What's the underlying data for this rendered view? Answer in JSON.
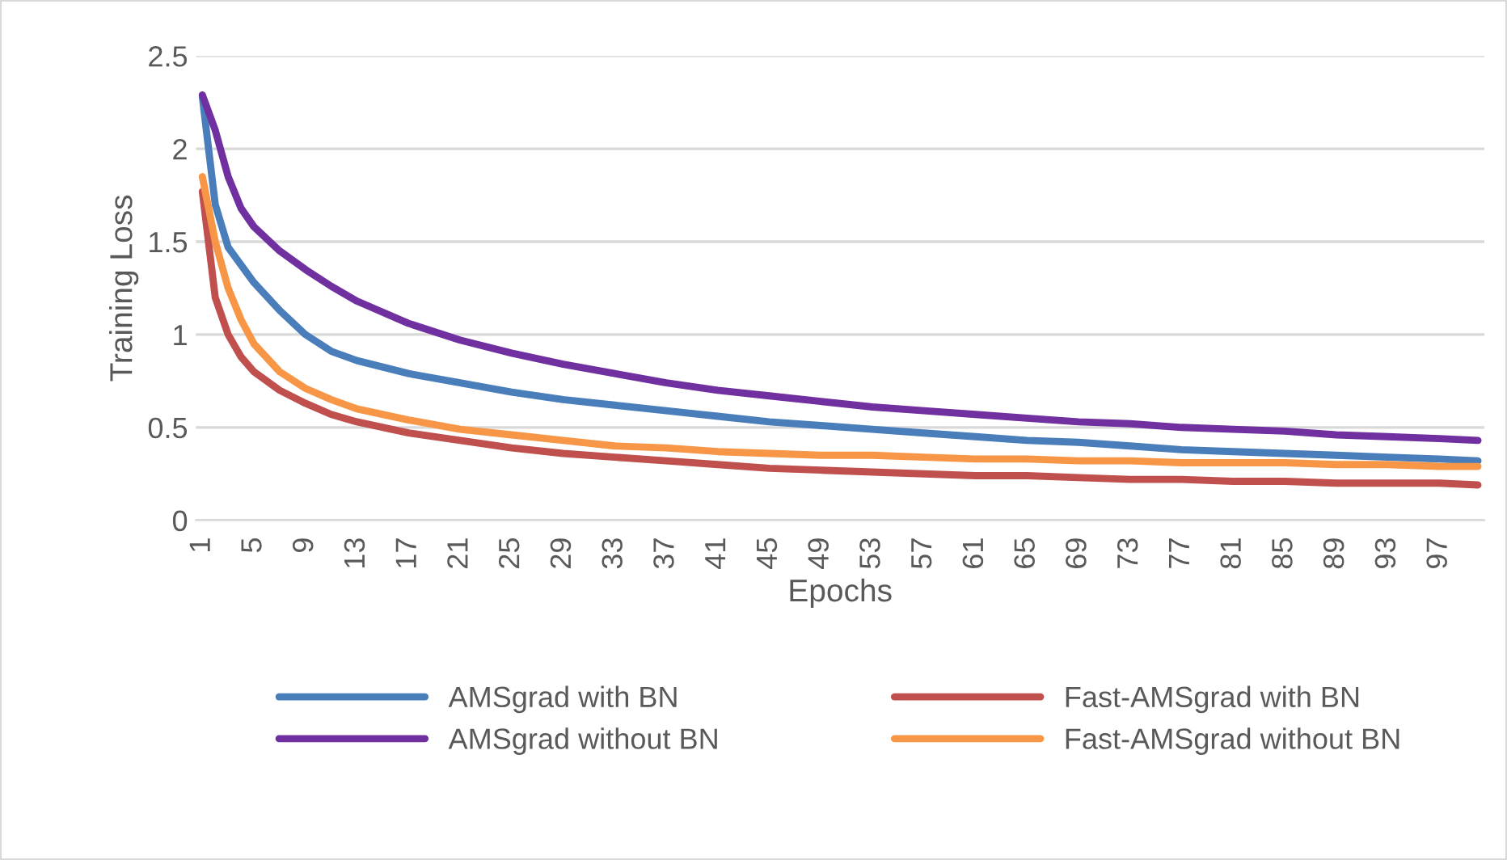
{
  "chart_data": {
    "type": "line",
    "xlabel": "Epochs",
    "ylabel": "Training Loss",
    "xlim": [
      0.5,
      100.5
    ],
    "xticks": [
      1,
      5,
      9,
      13,
      17,
      21,
      25,
      29,
      33,
      37,
      41,
      45,
      49,
      53,
      57,
      61,
      65,
      69,
      73,
      77,
      81,
      85,
      89,
      93,
      97
    ],
    "ylim": [
      0,
      2.5
    ],
    "yticks": [
      0,
      0.5,
      1,
      1.5,
      2,
      2.5
    ],
    "grid": "y",
    "legend": "bottom",
    "marker": "none",
    "line_style": "solid",
    "series": [
      {
        "name": "AMSgrad with BN",
        "color": "#4a7ebb",
        "x": [
          1,
          2,
          3,
          5,
          7,
          9,
          11,
          13,
          17,
          21,
          25,
          29,
          33,
          37,
          41,
          45,
          49,
          53,
          57,
          61,
          65,
          69,
          73,
          77,
          81,
          85,
          89,
          93,
          97,
          100
        ],
        "values": [
          2.28,
          1.7,
          1.47,
          1.28,
          1.13,
          1.0,
          0.91,
          0.86,
          0.79,
          0.74,
          0.69,
          0.65,
          0.62,
          0.59,
          0.56,
          0.53,
          0.51,
          0.49,
          0.47,
          0.45,
          0.43,
          0.42,
          0.4,
          0.38,
          0.37,
          0.36,
          0.35,
          0.34,
          0.33,
          0.32
        ]
      },
      {
        "name": "Fast-AMSgrad with BN",
        "color": "#c0504d",
        "x": [
          1,
          2,
          3,
          4,
          5,
          7,
          9,
          11,
          13,
          17,
          21,
          25,
          29,
          33,
          37,
          41,
          45,
          49,
          53,
          57,
          61,
          65,
          69,
          73,
          77,
          81,
          85,
          89,
          93,
          97,
          100
        ],
        "values": [
          1.77,
          1.2,
          1.0,
          0.88,
          0.8,
          0.7,
          0.63,
          0.57,
          0.53,
          0.47,
          0.43,
          0.39,
          0.36,
          0.34,
          0.32,
          0.3,
          0.28,
          0.27,
          0.26,
          0.25,
          0.24,
          0.24,
          0.23,
          0.22,
          0.22,
          0.21,
          0.21,
          0.2,
          0.2,
          0.2,
          0.19
        ]
      },
      {
        "name": "AMSgrad without BN",
        "color": "#7030a0",
        "x": [
          1,
          2,
          3,
          4,
          5,
          7,
          9,
          11,
          13,
          17,
          21,
          25,
          29,
          33,
          37,
          41,
          45,
          49,
          53,
          57,
          61,
          65,
          69,
          73,
          77,
          81,
          85,
          89,
          93,
          97,
          100
        ],
        "values": [
          2.29,
          2.1,
          1.85,
          1.68,
          1.58,
          1.45,
          1.35,
          1.26,
          1.18,
          1.06,
          0.97,
          0.9,
          0.84,
          0.79,
          0.74,
          0.7,
          0.67,
          0.64,
          0.61,
          0.59,
          0.57,
          0.55,
          0.53,
          0.52,
          0.5,
          0.49,
          0.48,
          0.46,
          0.45,
          0.44,
          0.43
        ]
      },
      {
        "name": "Fast-AMSgrad without BN",
        "color": "#f79646",
        "x": [
          1,
          2,
          3,
          4,
          5,
          7,
          9,
          11,
          13,
          17,
          21,
          25,
          29,
          33,
          37,
          41,
          45,
          49,
          53,
          57,
          61,
          65,
          69,
          73,
          77,
          81,
          85,
          89,
          93,
          97,
          100
        ],
        "values": [
          1.85,
          1.5,
          1.25,
          1.08,
          0.95,
          0.8,
          0.71,
          0.65,
          0.6,
          0.54,
          0.49,
          0.46,
          0.43,
          0.4,
          0.39,
          0.37,
          0.36,
          0.35,
          0.35,
          0.34,
          0.33,
          0.33,
          0.32,
          0.32,
          0.31,
          0.31,
          0.31,
          0.3,
          0.3,
          0.29,
          0.29
        ]
      }
    ]
  }
}
